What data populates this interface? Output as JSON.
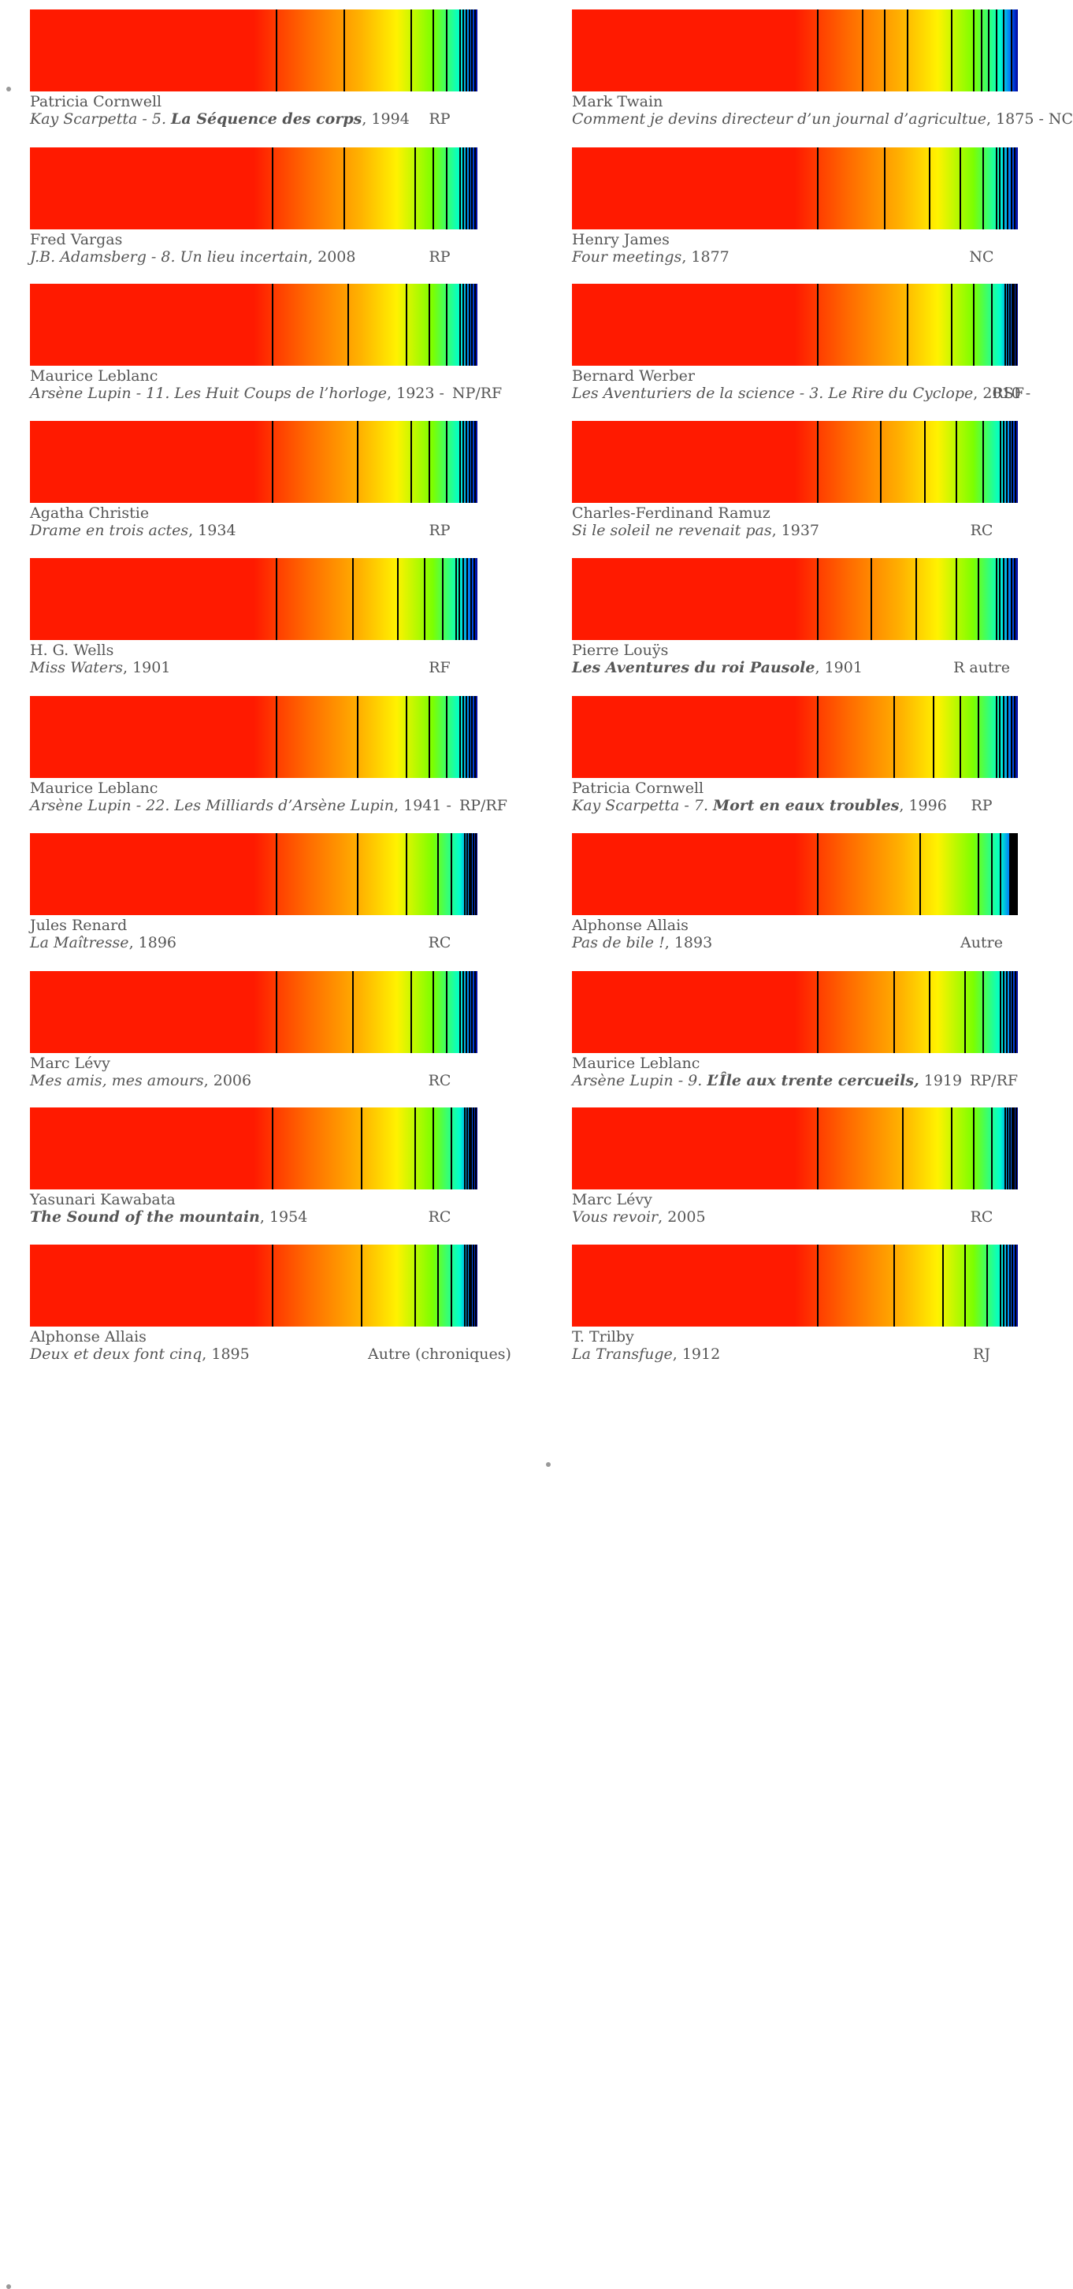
{
  "colors": {
    "gradient": [
      "#ff1a00",
      "#ff6a00",
      "#ffb300",
      "#fff200",
      "#7cff00",
      "#00ffcc",
      "#0066ff",
      "#000099"
    ],
    "divider": "#000000",
    "text": "#555555"
  },
  "left": [
    {
      "author": "Patricia Cornwell",
      "title_pre": "Kay Scarpetta - 5. ",
      "title_bold": "La Séquence des corps",
      "title_post": "",
      "suffix": ", 1994",
      "genre": "RP",
      "bullet": true,
      "split": 0.55,
      "end": [
        0.7,
        0.85,
        0.9,
        0.93,
        0.96
      ]
    },
    {
      "author": "Fred Vargas",
      "title_pre": "J.B. Adamsberg - 8. Un lieu incertain",
      "title_bold": "",
      "title_post": "",
      "suffix": ", 2008",
      "genre": "RP",
      "bullet": false,
      "split": 0.54,
      "end": [
        0.7,
        0.86,
        0.9,
        0.93,
        0.96
      ]
    },
    {
      "author": "Maurice Leblanc",
      "title_pre": "Arsène Lupin - 11. Les Huit Coups de l’horloge",
      "title_bold": "",
      "title_post": "",
      "suffix": ", 1923 -",
      "genre": "NP/RF",
      "bullet": false,
      "split": 0.54,
      "end": [
        0.71,
        0.84,
        0.89,
        0.93,
        0.96
      ]
    },
    {
      "author": "Agatha Christie",
      "title_pre": "Drame en trois actes",
      "title_bold": "",
      "title_post": "",
      "suffix": ", 1934",
      "genre": "RP",
      "bullet": false,
      "split": 0.54,
      "end": [
        0.73,
        0.85,
        0.89,
        0.93,
        0.96
      ]
    },
    {
      "author": "H. G. Wells",
      "title_pre": "Miss Waters",
      "title_bold": "",
      "title_post": "",
      "suffix": ", 1901",
      "genre": "RF",
      "bullet": false,
      "split": 0.55,
      "end": [
        0.72,
        0.82,
        0.88,
        0.92,
        0.95
      ]
    },
    {
      "author": "Maurice Leblanc",
      "title_pre": "Arsène Lupin - 22. Les Milliards d’Arsène Lupin",
      "title_bold": "",
      "title_post": "",
      "suffix": ", 1941 -",
      "genre": "RP/RF",
      "bullet": false,
      "split": 0.55,
      "end": [
        0.73,
        0.84,
        0.89,
        0.93,
        0.96
      ]
    },
    {
      "author": "Jules Renard",
      "title_pre": "La Maîtresse",
      "title_bold": "",
      "title_post": "",
      "suffix": ", 1896",
      "genre": "RC",
      "bullet": false,
      "split": 0.55,
      "end": [
        0.73,
        0.84,
        0.91,
        0.94,
        0.97
      ]
    },
    {
      "author": "Marc Lévy",
      "title_pre": "Mes amis, mes amours",
      "title_bold": "",
      "title_post": "",
      "suffix": ", 2006",
      "genre": "RC",
      "bullet": false,
      "split": 0.55,
      "end": [
        0.72,
        0.85,
        0.9,
        0.93,
        0.96
      ]
    },
    {
      "author": "Yasunari Kawabata",
      "title_pre": "",
      "title_bold": "The Sound of the mountain",
      "title_post": "",
      "suffix": ", 1954",
      "genre": "RC",
      "bullet": true,
      "split": 0.54,
      "end": [
        0.74,
        0.86,
        0.9,
        0.94,
        0.97
      ]
    },
    {
      "author": "Alphonse Allais",
      "title_pre": "Deux et deux font cinq",
      "title_bold": "",
      "title_post": "",
      "suffix": ", 1895",
      "genre": "Autre (chroniques)",
      "bullet": false,
      "split": 0.54,
      "end": [
        0.74,
        0.86,
        0.91,
        0.94,
        0.97
      ]
    }
  ],
  "right": [
    {
      "author": "Mark Twain",
      "title_pre": "Comment je devins directeur d’un journal d’agricultue",
      "title_bold": "",
      "title_post": "",
      "suffix": ", 1875 - NC",
      "genre": "",
      "bullet": false,
      "split": 0.55,
      "end": [
        0.65,
        0.7,
        0.75,
        0.85,
        0.9
      ]
    },
    {
      "author": "Henry James",
      "title_pre": "Four meetings",
      "title_bold": "",
      "title_post": "",
      "suffix": ", 1877",
      "genre": "NC",
      "bullet": false,
      "split": 0.55,
      "end": [
        0.7,
        0.8,
        0.87,
        0.92,
        0.95
      ]
    },
    {
      "author": "Bernard Werber",
      "title_pre": "Les Aventuriers de la science - 3. Le Rire du Cyclope",
      "title_bold": "",
      "title_post": "",
      "suffix": ", 2010 -",
      "genre": "RSF",
      "bullet": false,
      "split": 0.55,
      "end": [
        0.75,
        0.85,
        0.9,
        0.94,
        0.97
      ]
    },
    {
      "author": "Charles-Ferdinand Ramuz",
      "title_pre": "Si le soleil ne revenait pas",
      "title_bold": "",
      "title_post": "",
      "suffix": ", 1937",
      "genre": "RC",
      "bullet": false,
      "split": 0.55,
      "end": [
        0.69,
        0.79,
        0.86,
        0.92,
        0.96
      ]
    },
    {
      "author": "Pierre Louÿs",
      "title_pre": "",
      "title_bold": "Les Aventures du roi Pausole",
      "title_post": "",
      "suffix": ", 1901",
      "genre": "R autre",
      "bullet": false,
      "split": 0.55,
      "end": [
        0.67,
        0.77,
        0.86,
        0.91,
        0.95
      ]
    },
    {
      "author": "Patricia Cornwell",
      "title_pre": "Kay Scarpetta - 7. ",
      "title_bold": "Mort en eaux troubles",
      "title_post": "",
      "suffix": ", 1996",
      "genre": "RP",
      "bullet": true,
      "split": 0.55,
      "end": [
        0.72,
        0.81,
        0.87,
        0.91,
        0.95
      ]
    },
    {
      "author": "Alphonse Allais",
      "title_pre": "Pas de bile !",
      "title_bold": "",
      "title_post": "",
      "suffix": ", 1893",
      "genre": "Autre",
      "bullet": false,
      "split": 0.55,
      "end": [
        0.78,
        0.91,
        0.94,
        0.96,
        0.98
      ]
    },
    {
      "author": "Maurice Leblanc",
      "title_pre": "Arsène Lupin - 9. ",
      "title_bold": "L’Île aux trente cercueils,",
      "title_post": "",
      "suffix": " 1919",
      "genre": "RP/RF",
      "bullet": false,
      "split": 0.55,
      "end": [
        0.72,
        0.8,
        0.88,
        0.92,
        0.96
      ]
    },
    {
      "author": "Marc Lévy",
      "title_pre": "Vous revoir",
      "title_bold": "",
      "title_post": "",
      "suffix": ", 2005",
      "genre": "RC",
      "bullet": false,
      "split": 0.55,
      "end": [
        0.74,
        0.85,
        0.9,
        0.94,
        0.97
      ]
    },
    {
      "author": "T. Trilby",
      "title_pre": "La Transfuge",
      "title_bold": "",
      "title_post": "",
      "suffix": ", 1912",
      "genre": "RJ",
      "bullet": false,
      "split": 0.55,
      "end": [
        0.72,
        0.83,
        0.88,
        0.93,
        0.96
      ]
    }
  ]
}
